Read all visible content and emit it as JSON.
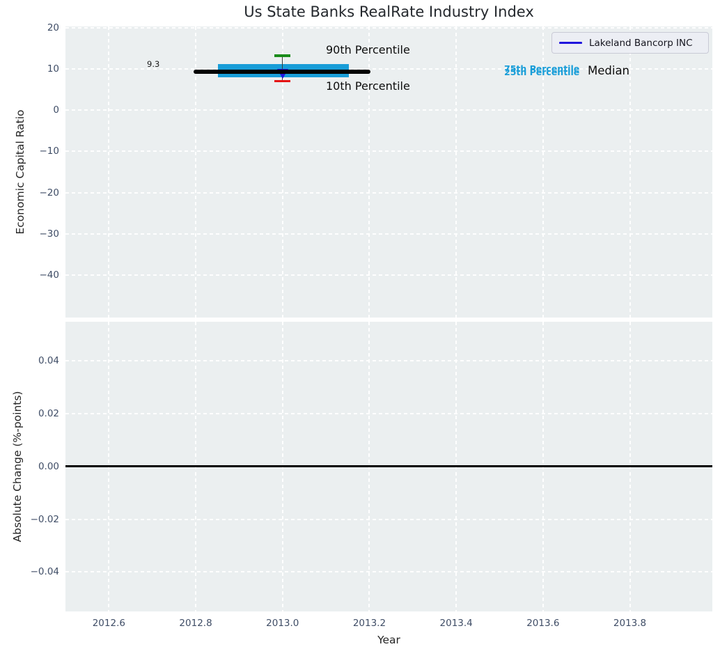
{
  "figure": {
    "title": "Us State Banks RealRate Industry Index"
  },
  "legend": {
    "label": "Lakeland Bancorp INC",
    "line_color": "#2015dd"
  },
  "colors": {
    "plot_background": "#ebeff0",
    "gridline": "#ffffff",
    "median_line": "#000000",
    "iqr_box": "#189dd8",
    "p90_cap": "#1a8c1a",
    "p10_cap": "#e41313",
    "company_marker": "#2015dd",
    "tick_text": "#3f4d66",
    "zero_line": "#000000"
  },
  "chart_data": [
    {
      "type": "box",
      "title": "Us State Banks RealRate Industry Index",
      "ylabel": "Economic Capital Ratio",
      "ylim": [
        -50.3,
        20.3
      ],
      "yticks": [
        {
          "v": 20,
          "label": "20"
        },
        {
          "v": 10,
          "label": "10"
        },
        {
          "v": 0,
          "label": "0"
        },
        {
          "v": -10,
          "label": "−10"
        },
        {
          "v": -20,
          "label": "−20"
        },
        {
          "v": -30,
          "label": "−30"
        },
        {
          "v": -40,
          "label": "−40"
        }
      ],
      "xlim": [
        2012.5,
        2013.99
      ],
      "xticks": [
        {
          "v": 2012.6,
          "label": "2012.6"
        },
        {
          "v": 2012.8,
          "label": "2012.8"
        },
        {
          "v": 2013.0,
          "label": "2013.0"
        },
        {
          "v": 2013.2,
          "label": "2013.2"
        },
        {
          "v": 2013.4,
          "label": "2013.4"
        },
        {
          "v": 2013.6,
          "label": "2013.6"
        },
        {
          "v": 2013.8,
          "label": "2013.8"
        }
      ],
      "show_xtick_labels": false,
      "box": {
        "x": 2013.0,
        "median": 9.3,
        "q1": 7.9,
        "q3": 11.2,
        "p10": 7.1,
        "p90": 13.2,
        "median_span": [
          2012.795,
          2013.203
        ],
        "box_span": [
          2012.851,
          2013.152
        ]
      },
      "series": [
        {
          "name": "Lakeland Bancorp INC",
          "x": 2013.0,
          "y": 8.8,
          "marker": "triangle-down",
          "color": "#2015dd"
        }
      ],
      "labels": {
        "median_value": "9.3",
        "p90": "90th Percentile",
        "p10": "10th Percentile",
        "p75": "75th Percentile",
        "p25": "25th Percentile",
        "median": "Median"
      }
    },
    {
      "type": "line",
      "ylabel": "Absolute Change (%-points)",
      "xlabel": "Year",
      "ylim": [
        -0.0549,
        0.0547
      ],
      "yticks": [
        {
          "v": 0.04,
          "label": "0.04"
        },
        {
          "v": 0.02,
          "label": "0.02"
        },
        {
          "v": 0.0,
          "label": "0.00"
        },
        {
          "v": -0.02,
          "label": "−0.02"
        },
        {
          "v": -0.04,
          "label": "−0.04"
        }
      ],
      "xlim": [
        2012.5,
        2013.99
      ],
      "xticks": [
        {
          "v": 2012.6,
          "label": "2012.6"
        },
        {
          "v": 2012.8,
          "label": "2012.8"
        },
        {
          "v": 2013.0,
          "label": "2013.0"
        },
        {
          "v": 2013.2,
          "label": "2013.2"
        },
        {
          "v": 2013.4,
          "label": "2013.4"
        },
        {
          "v": 2013.6,
          "label": "2013.6"
        },
        {
          "v": 2013.8,
          "label": "2013.8"
        }
      ],
      "show_xtick_labels": true,
      "zero_line": 0.0
    }
  ]
}
